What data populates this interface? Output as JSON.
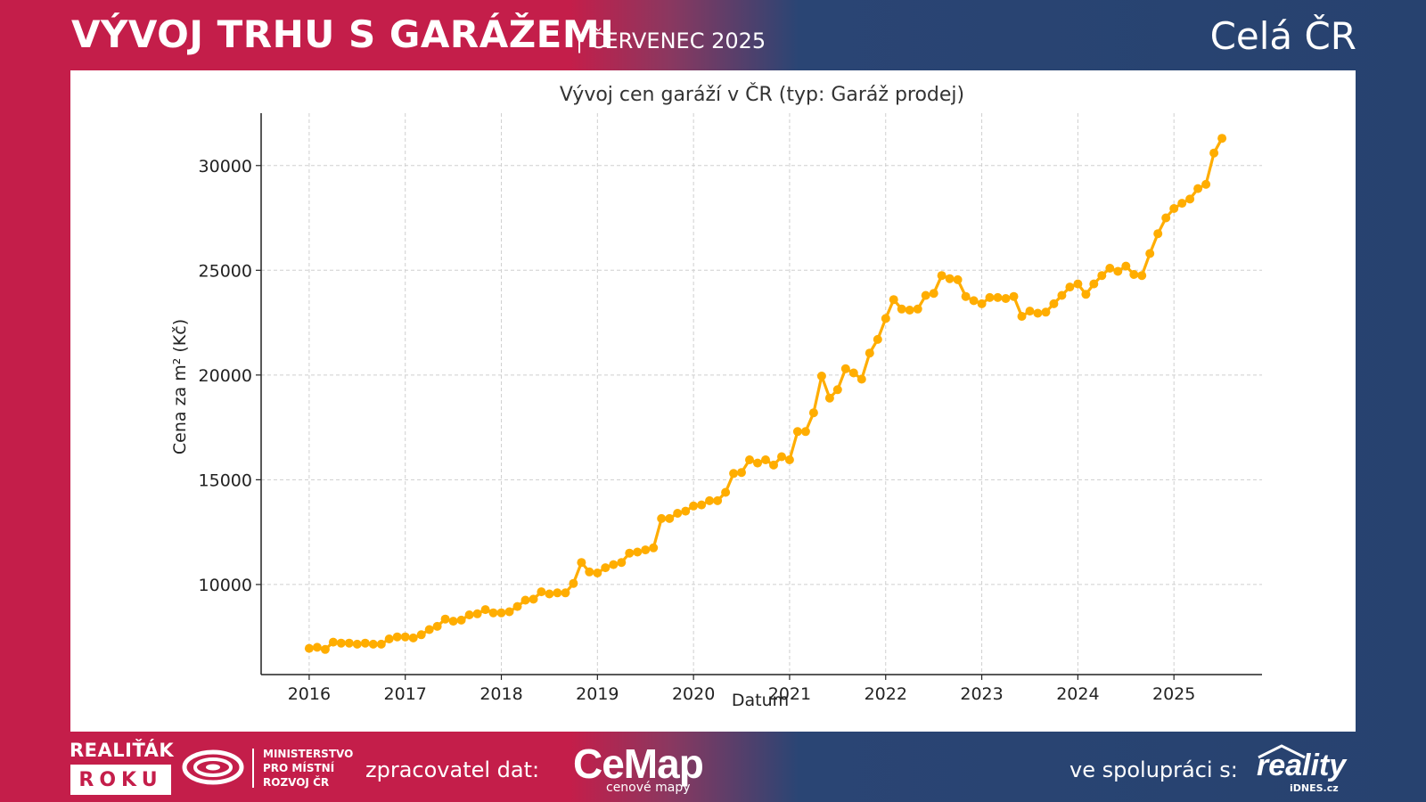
{
  "header": {
    "title": "VÝVOJ TRHU S GARÁŽEMI",
    "subtitle": "| ČERVENEC 2025",
    "region": "Celá ČR"
  },
  "footer": {
    "realitak": "REALIŤÁK",
    "roku": "ROKU",
    "mmr": "MINISTERSTVO\nPRO MÍSTNÍ\nROZVOJ ČR",
    "data_processor_label": "zpracovatel dat:",
    "cemap": "CeMap",
    "cemap_sub": "cenové mapy",
    "cooperation_label": "ve spolupráci s:",
    "reality": "reality",
    "idnes": "iDNES.cz"
  },
  "colors": {
    "red": "#c41e4a",
    "blue": "#27426f",
    "line": "#ffad00"
  },
  "chart_data": {
    "type": "line",
    "title": "Vývoj cen garáží v ČR (typ: Garáž prodej)",
    "xlabel": "Datum",
    "ylabel": "Cena za m² (Kč)",
    "x_ticks": [
      "2016",
      "2017",
      "2018",
      "2019",
      "2020",
      "2021",
      "2022",
      "2023",
      "2024",
      "2025"
    ],
    "y_ticks": [
      10000,
      15000,
      20000,
      25000,
      30000
    ],
    "xlim": [
      "2015-07",
      "2025-12"
    ],
    "ylim": [
      5700,
      32500
    ],
    "grid": true,
    "series": [
      {
        "x": [
          "2016-01",
          "2016-02",
          "2016-03",
          "2016-04",
          "2016-05",
          "2016-06",
          "2016-07",
          "2016-08",
          "2016-09",
          "2016-10",
          "2016-11",
          "2016-12",
          "2017-01",
          "2017-02",
          "2017-03",
          "2017-04",
          "2017-05",
          "2017-06",
          "2017-07",
          "2017-08",
          "2017-09",
          "2017-10",
          "2017-11",
          "2017-12",
          "2018-01",
          "2018-02",
          "2018-03",
          "2018-04",
          "2018-05",
          "2018-06",
          "2018-07",
          "2018-08",
          "2018-09",
          "2018-10",
          "2018-11",
          "2018-12",
          "2019-01",
          "2019-02",
          "2019-03",
          "2019-04",
          "2019-05",
          "2019-06",
          "2019-07",
          "2019-08",
          "2019-09",
          "2019-10",
          "2019-11",
          "2019-12",
          "2020-01",
          "2020-02",
          "2020-03",
          "2020-04",
          "2020-05",
          "2020-06",
          "2020-07",
          "2020-08",
          "2020-09",
          "2020-10",
          "2020-11",
          "2020-12",
          "2021-01",
          "2021-02",
          "2021-03",
          "2021-04",
          "2021-05",
          "2021-06",
          "2021-07",
          "2021-08",
          "2021-09",
          "2021-10",
          "2021-11",
          "2021-12",
          "2022-01",
          "2022-02",
          "2022-03",
          "2022-04",
          "2022-05",
          "2022-06",
          "2022-07",
          "2022-08",
          "2022-09",
          "2022-10",
          "2022-11",
          "2022-12",
          "2023-01",
          "2023-02",
          "2023-03",
          "2023-04",
          "2023-05",
          "2023-06",
          "2023-07",
          "2023-08",
          "2023-09",
          "2023-10",
          "2023-11",
          "2023-12",
          "2024-01",
          "2024-02",
          "2024-03",
          "2024-04",
          "2024-05",
          "2024-06",
          "2024-07",
          "2024-08",
          "2024-09",
          "2024-10",
          "2024-11",
          "2024-12",
          "2025-01",
          "2025-02",
          "2025-03",
          "2025-04",
          "2025-05",
          "2025-06",
          "2025-07"
        ],
        "values": [
          6950,
          7000,
          6900,
          7250,
          7200,
          7200,
          7150,
          7200,
          7150,
          7150,
          7400,
          7500,
          7500,
          7450,
          7600,
          7850,
          8000,
          8350,
          8250,
          8300,
          8550,
          8600,
          8800,
          8650,
          8650,
          8700,
          8950,
          9250,
          9300,
          9650,
          9550,
          9600,
          9600,
          10050,
          11050,
          10600,
          10550,
          10800,
          10950,
          11050,
          11500,
          11550,
          11650,
          11750,
          13150,
          13150,
          13400,
          13500,
          13750,
          13800,
          14000,
          14000,
          14400,
          15300,
          15350,
          15950,
          15800,
          15950,
          15700,
          16100,
          15950,
          17300,
          17300,
          18200,
          19950,
          18900,
          19300,
          20300,
          20100,
          19800,
          21050,
          21700,
          22700,
          23600,
          23150,
          23100,
          23150,
          23800,
          23900,
          24750,
          24600,
          24550,
          23750,
          23550,
          23400,
          23700,
          23700,
          23650,
          23750,
          22800,
          23050,
          22950,
          23000,
          23400,
          23800,
          24200,
          24350,
          23850,
          24350,
          24750,
          25100,
          24950,
          25200,
          24800,
          24750,
          25800,
          26750,
          27500,
          27950,
          28200,
          28400,
          28900,
          29100,
          30600,
          31300
        ]
      }
    ]
  }
}
